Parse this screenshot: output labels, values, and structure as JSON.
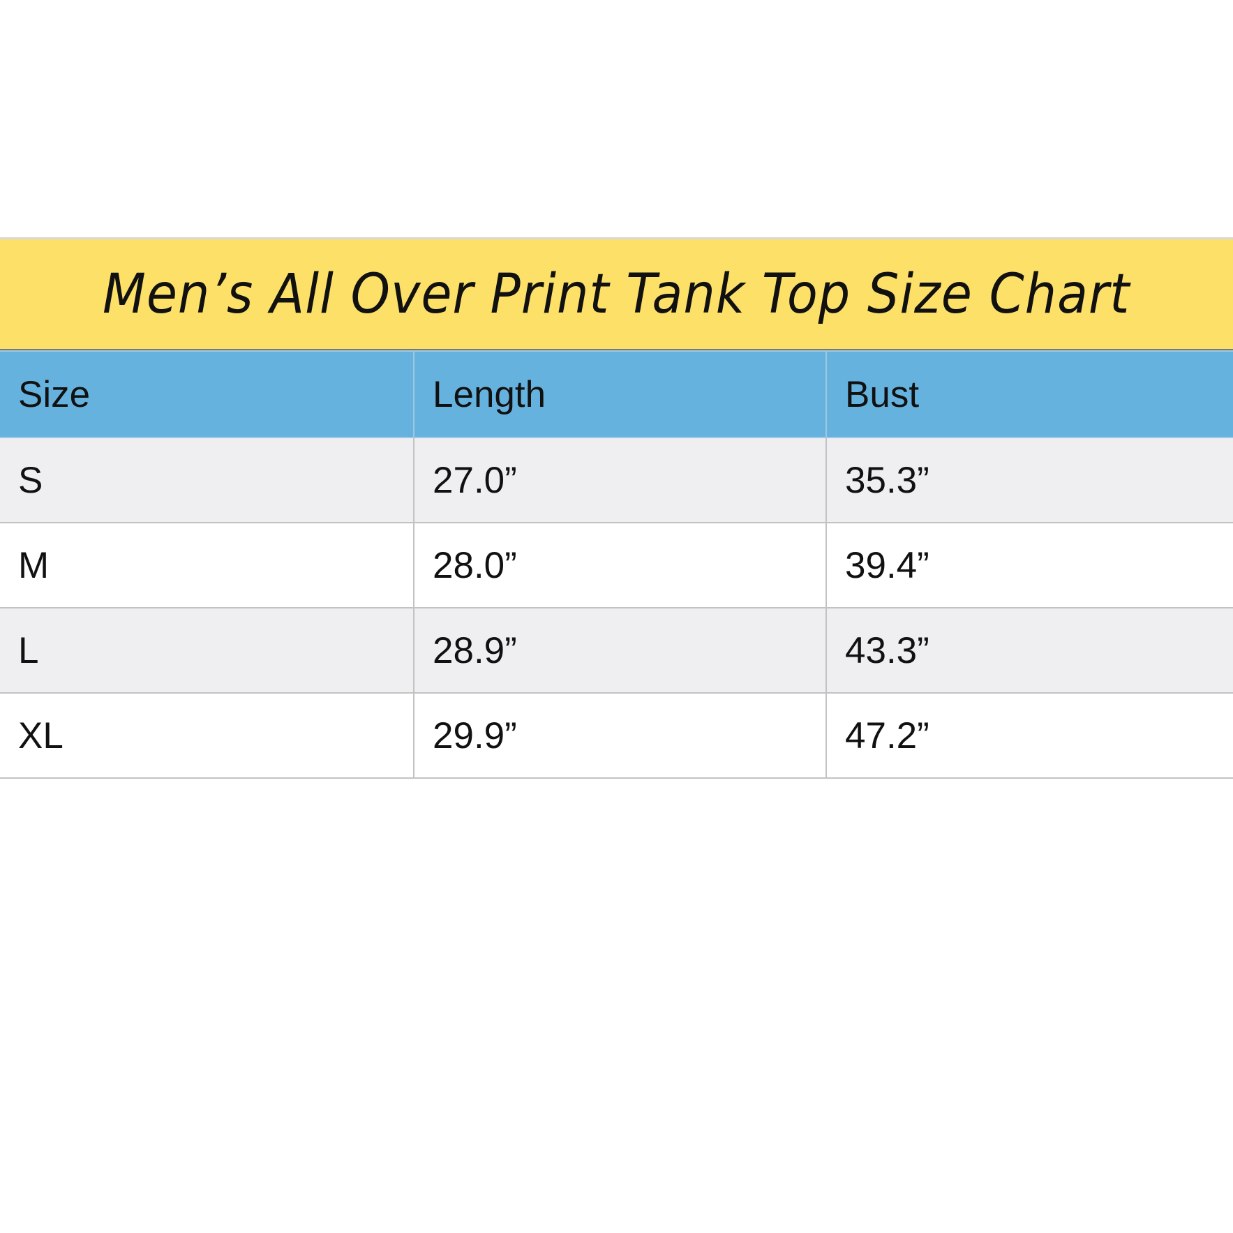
{
  "title": "Men’s All Over Print Tank Top Size Chart",
  "colors": {
    "title_band": "#fde068",
    "header": "#66b2df",
    "row_alt": "#efeef1"
  },
  "table": {
    "headers": [
      "Size",
      "Length",
      "Bust"
    ],
    "rows": [
      [
        "S",
        "27.0”",
        "35.3”"
      ],
      [
        "M",
        "28.0”",
        "39.4”"
      ],
      [
        "L",
        "28.9”",
        "43.3”"
      ],
      [
        "XL",
        "29.9”",
        "47.2”"
      ]
    ]
  }
}
